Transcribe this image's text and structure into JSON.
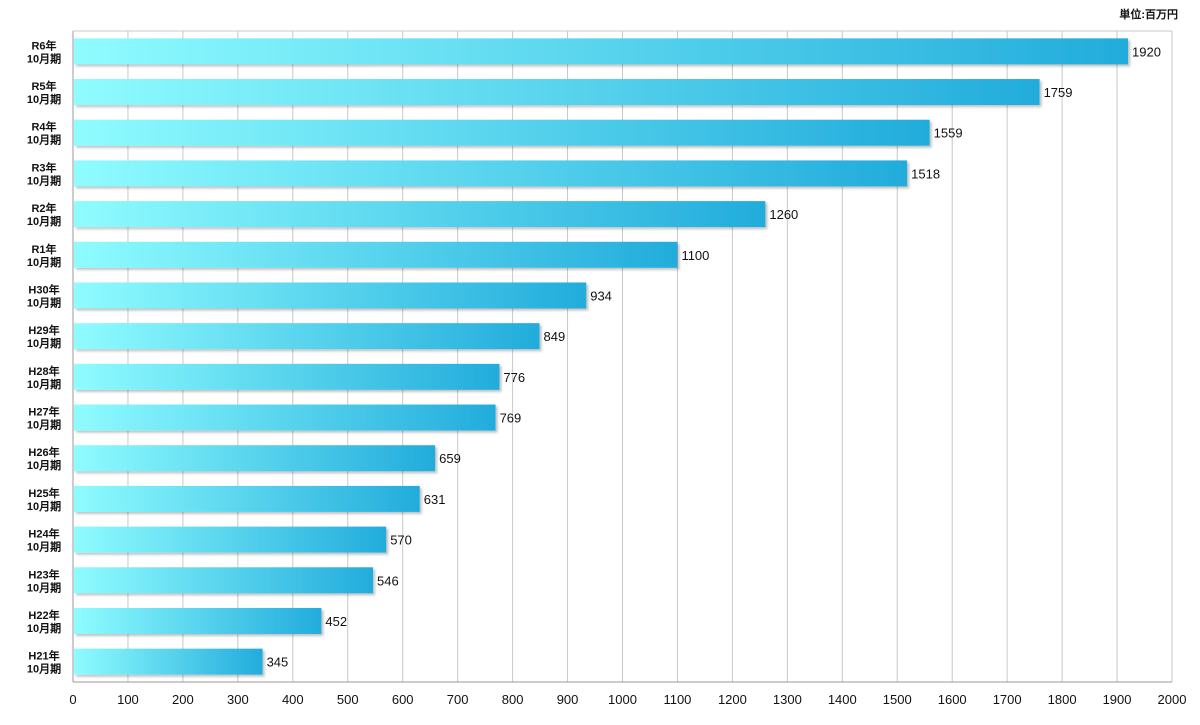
{
  "unit_label": "単位:百万円",
  "chart_data": {
    "type": "bar",
    "orientation": "horizontal",
    "title": "",
    "xlabel": "",
    "ylabel": "",
    "xlim": [
      0,
      2000
    ],
    "x_ticks": [
      0,
      100,
      200,
      300,
      400,
      500,
      600,
      700,
      800,
      900,
      1000,
      1100,
      1200,
      1300,
      1400,
      1500,
      1600,
      1700,
      1800,
      1900,
      2000
    ],
    "grid": true,
    "bar_gradient": {
      "start": "#8ffcff",
      "end": "#22acdc"
    },
    "categories": [
      [
        "R6年",
        "10月期"
      ],
      [
        "R5年",
        "10月期"
      ],
      [
        "R4年",
        "10月期"
      ],
      [
        "R3年",
        "10月期"
      ],
      [
        "R2年",
        "10月期"
      ],
      [
        "R1年",
        "10月期"
      ],
      [
        "H30年",
        "10月期"
      ],
      [
        "H29年",
        "10月期"
      ],
      [
        "H28年",
        "10月期"
      ],
      [
        "H27年",
        "10月期"
      ],
      [
        "H26年",
        "10月期"
      ],
      [
        "H25年",
        "10月期"
      ],
      [
        "H24年",
        "10月期"
      ],
      [
        "H23年",
        "10月期"
      ],
      [
        "H22年",
        "10月期"
      ],
      [
        "H21年",
        "10月期"
      ]
    ],
    "values": [
      1920,
      1759,
      1559,
      1518,
      1260,
      1100,
      934,
      849,
      776,
      769,
      659,
      631,
      570,
      546,
      452,
      345
    ]
  }
}
